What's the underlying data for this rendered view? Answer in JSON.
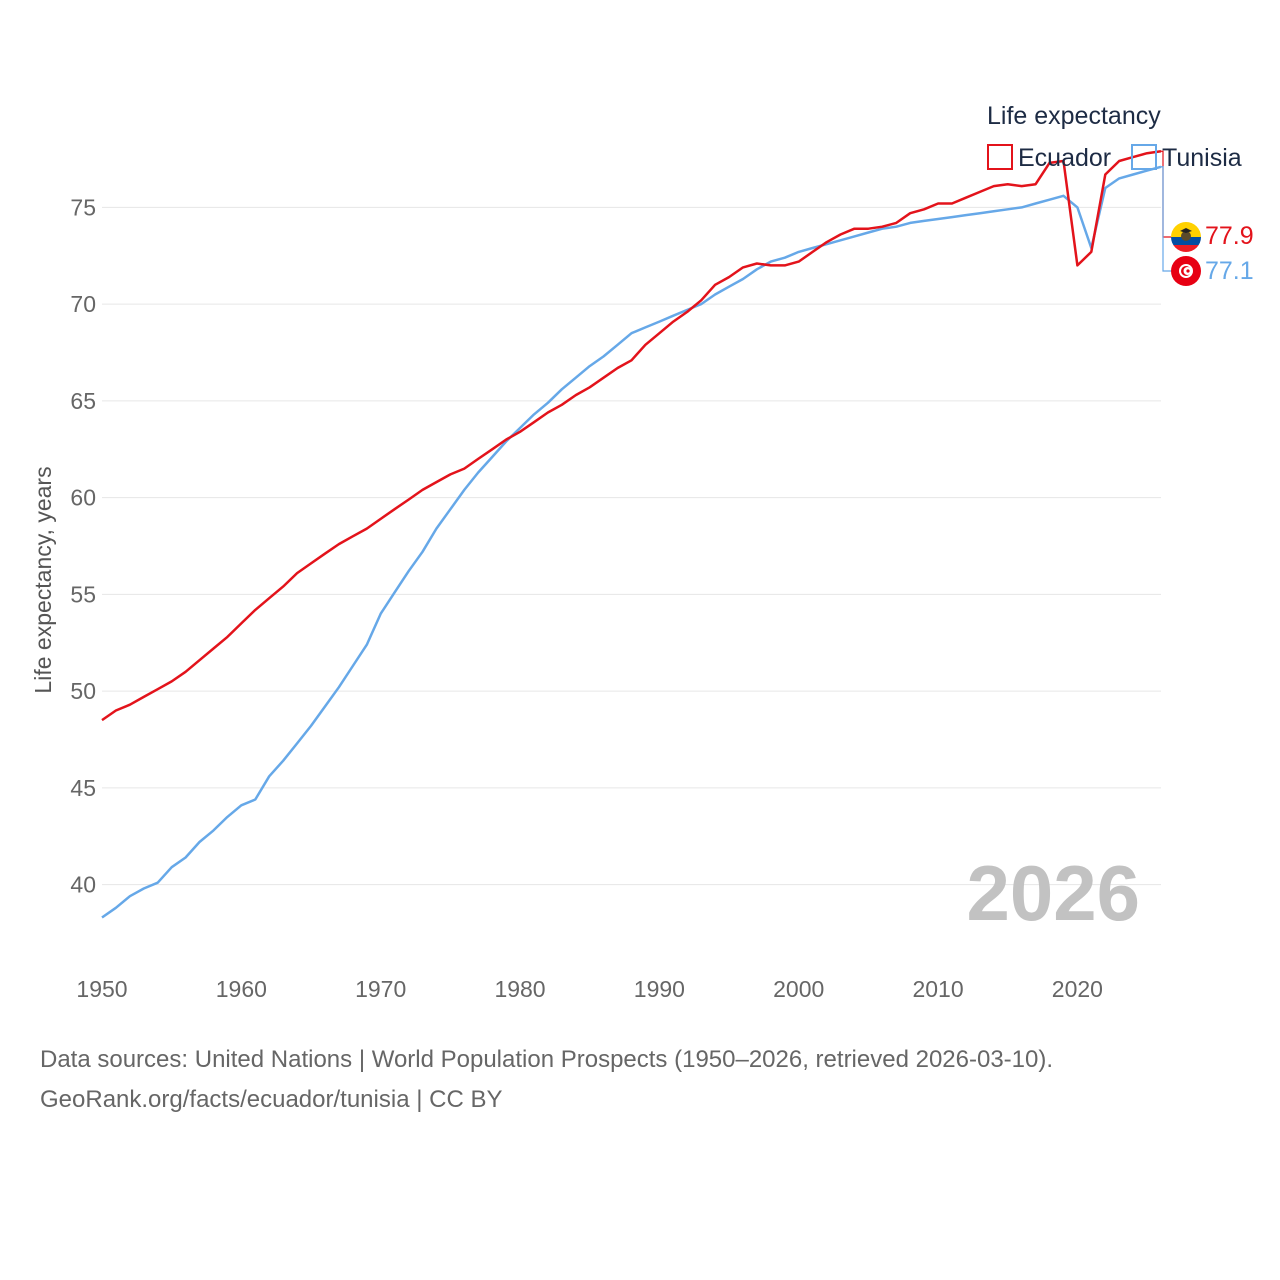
{
  "colors": {
    "ecuador": "#e3131b",
    "tunisia": "#66a8e8",
    "grid": "#e6e6e6",
    "text": "#666666"
  },
  "legend": {
    "title": "Life expectancy",
    "items": [
      {
        "label": "Ecuador",
        "color": "#e3131b"
      },
      {
        "label": "Tunisia",
        "color": "#66a8e8"
      }
    ]
  },
  "watermark_year": "2026",
  "end_labels": {
    "ecuador": "77.9",
    "tunisia": "77.1"
  },
  "icons": {
    "ecuador": "ecuador-flag-icon",
    "tunisia": "tunisia-flag-icon"
  },
  "footer": {
    "source": "Data sources: United Nations | World Population Prospects (1950–2026, retrieved 2026-03-10).",
    "credit": "GeoRank.org/facts/ecuador/tunisia | CC BY"
  },
  "chart_data": {
    "type": "line",
    "title": "Life expectancy",
    "xlabel": "",
    "ylabel": "Life expectancy, years",
    "xlim": [
      1950,
      2026
    ],
    "ylim": [
      36,
      79
    ],
    "x_ticks": [
      1950,
      1960,
      1970,
      1980,
      1990,
      2000,
      2010,
      2020
    ],
    "y_ticks": [
      40,
      45,
      50,
      55,
      60,
      65,
      70,
      75
    ],
    "x": [
      1950,
      1951,
      1952,
      1953,
      1954,
      1955,
      1956,
      1957,
      1958,
      1959,
      1960,
      1961,
      1962,
      1963,
      1964,
      1965,
      1966,
      1967,
      1968,
      1969,
      1970,
      1971,
      1972,
      1973,
      1974,
      1975,
      1976,
      1977,
      1978,
      1979,
      1980,
      1981,
      1982,
      1983,
      1984,
      1985,
      1986,
      1987,
      1988,
      1989,
      1990,
      1991,
      1992,
      1993,
      1994,
      1995,
      1996,
      1997,
      1998,
      1999,
      2000,
      2001,
      2002,
      2003,
      2004,
      2005,
      2006,
      2007,
      2008,
      2009,
      2010,
      2011,
      2012,
      2013,
      2014,
      2015,
      2016,
      2017,
      2018,
      2019,
      2020,
      2021,
      2022,
      2023,
      2024,
      2025,
      2026
    ],
    "series": [
      {
        "name": "Ecuador",
        "color": "#e3131b",
        "values": [
          48.5,
          49.0,
          49.3,
          49.7,
          50.1,
          50.5,
          51.0,
          51.6,
          52.2,
          52.8,
          53.5,
          54.2,
          54.8,
          55.4,
          56.1,
          56.6,
          57.1,
          57.6,
          58.0,
          58.4,
          58.9,
          59.4,
          59.9,
          60.4,
          60.8,
          61.2,
          61.5,
          62.0,
          62.5,
          63.0,
          63.4,
          63.9,
          64.4,
          64.8,
          65.3,
          65.7,
          66.2,
          66.7,
          67.1,
          67.9,
          68.5,
          69.1,
          69.6,
          70.2,
          71.0,
          71.4,
          71.9,
          72.1,
          72.0,
          72.0,
          72.2,
          72.7,
          73.2,
          73.6,
          73.9,
          73.9,
          74.0,
          74.2,
          74.7,
          74.9,
          75.2,
          75.2,
          75.5,
          75.8,
          76.1,
          76.2,
          76.1,
          76.2,
          77.3,
          77.4,
          72.0,
          72.7,
          76.7,
          77.4,
          77.6,
          77.8,
          77.9
        ]
      },
      {
        "name": "Tunisia",
        "color": "#66a8e8",
        "values": [
          38.3,
          38.8,
          39.4,
          39.8,
          40.1,
          40.9,
          41.4,
          42.2,
          42.8,
          43.5,
          44.1,
          44.4,
          45.6,
          46.4,
          47.3,
          48.2,
          49.2,
          50.2,
          51.3,
          52.4,
          54.0,
          55.1,
          56.2,
          57.2,
          58.4,
          59.4,
          60.4,
          61.3,
          62.1,
          62.9,
          63.6,
          64.3,
          64.9,
          65.6,
          66.2,
          66.8,
          67.3,
          67.9,
          68.5,
          68.8,
          69.1,
          69.4,
          69.7,
          70.0,
          70.5,
          70.9,
          71.3,
          71.8,
          72.2,
          72.4,
          72.7,
          72.9,
          73.1,
          73.3,
          73.5,
          73.7,
          73.9,
          74.0,
          74.2,
          74.3,
          74.4,
          74.5,
          74.6,
          74.7,
          74.8,
          74.9,
          75.0,
          75.2,
          75.4,
          75.6,
          75.0,
          72.9,
          76.0,
          76.5,
          76.7,
          76.9,
          77.1
        ]
      }
    ]
  }
}
